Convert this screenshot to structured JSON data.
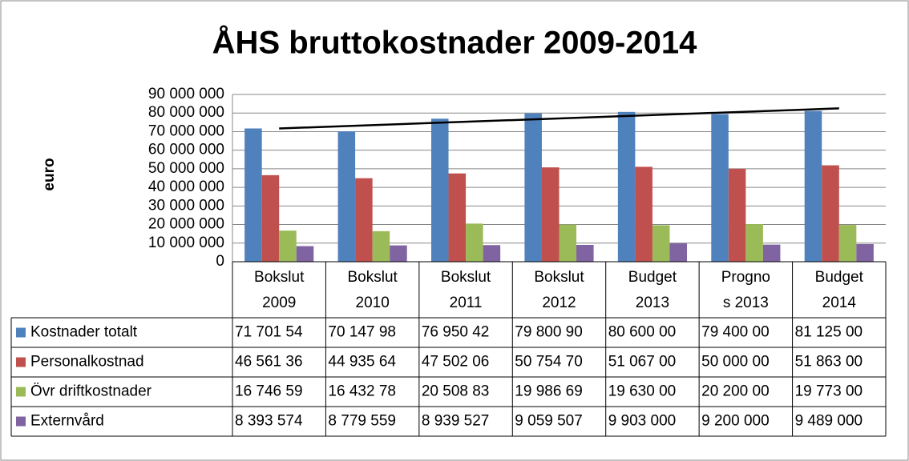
{
  "chart_data": {
    "type": "bar",
    "title": "ÅHS bruttokostnader 2009-2014",
    "y_label": "euro",
    "categories": [
      [
        "Bokslut",
        "2009"
      ],
      [
        "Bokslut",
        "2010"
      ],
      [
        "Bokslut",
        "2011"
      ],
      [
        "Bokslut",
        "2012"
      ],
      [
        "Budget",
        "2013"
      ],
      [
        "Progno",
        "s 2013"
      ],
      [
        "Budget",
        "2014"
      ]
    ],
    "series": [
      {
        "name": "Kostnader totalt",
        "color": "#4f81bd",
        "trendline": true,
        "values": [
          71701540,
          70147980,
          76950420,
          79800900,
          80600000,
          79400000,
          81125000
        ],
        "value_labels": [
          "71 701 54",
          "70 147 98",
          "76 950 42",
          "79 800 90",
          "80 600 00",
          "79 400 00",
          "81 125 00"
        ]
      },
      {
        "name": "Personalkostnad",
        "color": "#c0504d",
        "values": [
          46561360,
          44935640,
          47502060,
          50754700,
          51067000,
          50000000,
          51863000
        ],
        "value_labels": [
          "46 561 36",
          "44 935 64",
          "47 502 06",
          "50 754 70",
          "51 067 00",
          "50 000 00",
          "51 863 00"
        ]
      },
      {
        "name": "Övr driftkostnader",
        "color": "#9bbb59",
        "values": [
          16746590,
          16432780,
          20508830,
          19986690,
          19630000,
          20200000,
          19773000
        ],
        "value_labels": [
          "16 746 59",
          "16 432 78",
          "20 508 83",
          "19 986 69",
          "19 630 00",
          "20 200 00",
          "19 773 00"
        ]
      },
      {
        "name": "Externvård",
        "color": "#8064a2",
        "values": [
          8393574,
          8779559,
          8939527,
          9059507,
          9903000,
          9200000,
          9489000
        ],
        "value_labels": [
          "8 393 574",
          "8 779 559",
          "8 939 527",
          "9 059 507",
          "9 903 000",
          "9 200 000",
          "9 489 000"
        ]
      }
    ],
    "ylim": [
      0,
      90000000
    ],
    "yticks": [
      {
        "value": 0,
        "label": "0"
      },
      {
        "value": 10000000,
        "label": "10 000 000"
      },
      {
        "value": 20000000,
        "label": "20 000 000"
      },
      {
        "value": 30000000,
        "label": "30 000 000"
      },
      {
        "value": 40000000,
        "label": "40 000 000"
      },
      {
        "value": 50000000,
        "label": "50 000 000"
      },
      {
        "value": 60000000,
        "label": "60 000 000"
      },
      {
        "value": 70000000,
        "label": "70 000 000"
      },
      {
        "value": 80000000,
        "label": "80 000 000"
      },
      {
        "value": 90000000,
        "label": "90 000 000"
      }
    ],
    "grid": true,
    "data_table": true
  }
}
